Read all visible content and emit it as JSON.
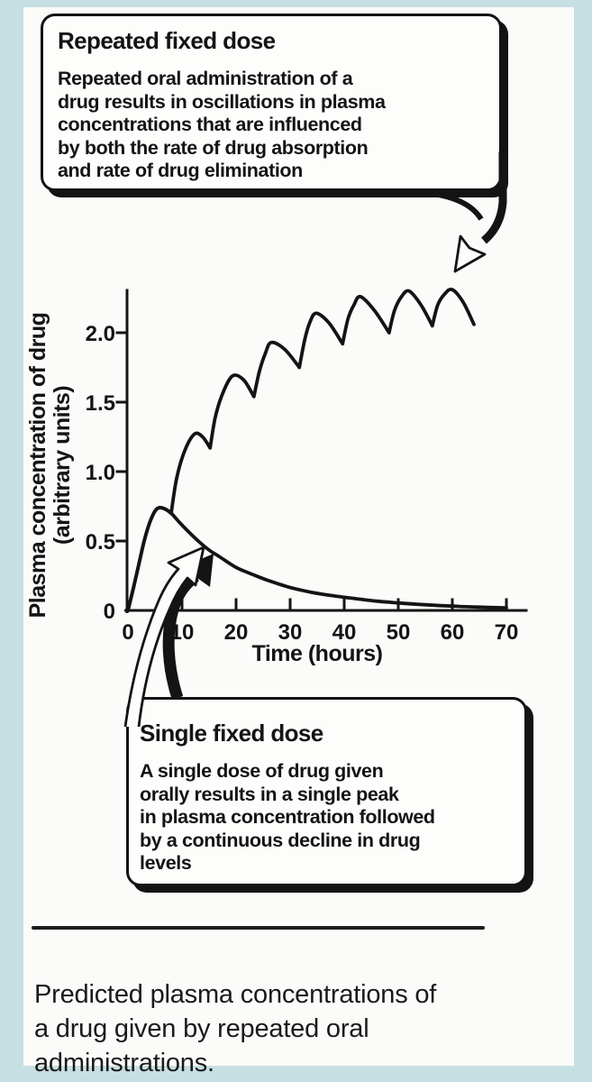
{
  "page": {
    "background_color": "#c6dfe2",
    "panel_color": "#fbfbf9",
    "ink_color": "#141414"
  },
  "callout_repeated": {
    "title": "Repeated fixed dose",
    "body": "Repeated oral administration of a\ndrug results in oscillations in plasma\nconcentrations that are influenced\nby both the rate of drug absorption\nand rate of drug elimination"
  },
  "callout_single": {
    "title": "Single fixed dose",
    "body": "A single dose of drug given\norally results in a single peak\nin plasma concentration followed\nby a continuous decline in drug\nlevels"
  },
  "caption": "Predicted plasma concentrations of\na drug given by repeated oral\nadministrations.",
  "chart_data": {
    "type": "line",
    "title": "",
    "xlabel": "Time (hours)",
    "ylabel_lines": [
      "Plasma concentration of drug",
      "(arbitrary units)"
    ],
    "xlim": [
      0,
      70
    ],
    "ylim": [
      0,
      2.45
    ],
    "xticks": [
      0,
      10,
      20,
      30,
      40,
      50,
      60,
      70
    ],
    "yticks": [
      {
        "v": 0,
        "label": "0"
      },
      {
        "v": 0.5,
        "label": "0.5"
      },
      {
        "v": 1,
        "label": "1.0"
      },
      {
        "v": 1.5,
        "label": "1.5"
      },
      {
        "v": 2,
        "label": "2.0"
      }
    ],
    "grid": false,
    "line_color": "#141414",
    "series": [
      {
        "name": "Repeated fixed dose",
        "dose_interval_hours": 8,
        "segments": [
          [
            [
              0,
              0
            ],
            [
              1,
              0.16
            ],
            [
              2,
              0.33
            ],
            [
              3,
              0.5
            ],
            [
              4,
              0.63
            ],
            [
              5,
              0.715
            ],
            [
              5.8,
              0.74
            ],
            [
              6.9,
              0.73
            ],
            [
              8,
              0.7
            ]
          ],
          [
            [
              8,
              0.7
            ],
            [
              9,
              0.95
            ],
            [
              10.5,
              1.15
            ],
            [
              12.3,
              1.27
            ],
            [
              13.8,
              1.25
            ],
            [
              15.2,
              1.17
            ]
          ],
          [
            [
              15.2,
              1.17
            ],
            [
              16.2,
              1.4
            ],
            [
              17.7,
              1.58
            ],
            [
              19.4,
              1.69
            ],
            [
              21.4,
              1.66
            ],
            [
              23.3,
              1.54
            ]
          ],
          [
            [
              23.3,
              1.54
            ],
            [
              24.3,
              1.72
            ],
            [
              25.4,
              1.85
            ],
            [
              26.5,
              1.93
            ],
            [
              29,
              1.88
            ],
            [
              31.7,
              1.75
            ]
          ],
          [
            [
              31.7,
              1.75
            ],
            [
              32.7,
              1.95
            ],
            [
              33.6,
              2.07
            ],
            [
              34.8,
              2.14
            ],
            [
              37.2,
              2.07
            ],
            [
              39.7,
              1.92
            ]
          ],
          [
            [
              39.7,
              1.92
            ],
            [
              40.7,
              2.1
            ],
            [
              41.8,
              2.2
            ],
            [
              43,
              2.26
            ],
            [
              45.6,
              2.16
            ],
            [
              48.3,
              2.0
            ]
          ],
          [
            [
              48.3,
              2.0
            ],
            [
              49.3,
              2.16
            ],
            [
              50.6,
              2.26
            ],
            [
              52,
              2.3
            ],
            [
              54.2,
              2.2
            ],
            [
              56.3,
              2.05
            ]
          ],
          [
            [
              56.3,
              2.05
            ],
            [
              57.3,
              2.2
            ],
            [
              58.6,
              2.28
            ],
            [
              60,
              2.31
            ],
            [
              62,
              2.22
            ],
            [
              64,
              2.06
            ]
          ]
        ]
      },
      {
        "name": "Single fixed dose",
        "segments": [
          [
            [
              0,
              0
            ],
            [
              1,
              0.16
            ],
            [
              2,
              0.33
            ],
            [
              3,
              0.5
            ],
            [
              4,
              0.63
            ],
            [
              5,
              0.715
            ],
            [
              5.8,
              0.74
            ],
            [
              6.9,
              0.73
            ],
            [
              8,
              0.7
            ],
            [
              9.5,
              0.635
            ],
            [
              11,
              0.575
            ],
            [
              13,
              0.5
            ],
            [
              15,
              0.435
            ],
            [
              17,
              0.385
            ],
            [
              20,
              0.31
            ],
            [
              23,
              0.26
            ],
            [
              26,
              0.215
            ],
            [
              30,
              0.165
            ],
            [
              34,
              0.13
            ],
            [
              38,
              0.105
            ],
            [
              42,
              0.085
            ],
            [
              46,
              0.067
            ],
            [
              50,
              0.054
            ],
            [
              55,
              0.041
            ],
            [
              60,
              0.031
            ],
            [
              65,
              0.024
            ],
            [
              70,
              0.019
            ]
          ]
        ]
      }
    ]
  }
}
